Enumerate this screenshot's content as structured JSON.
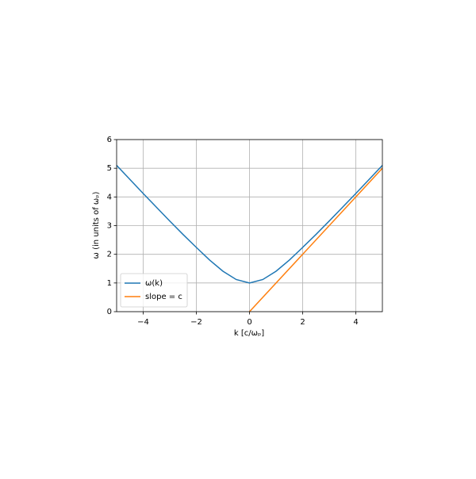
{
  "chart_data": {
    "type": "line",
    "xlabel": "k [c/ωₚ]",
    "ylabel": "ω (in units of ωₚ)",
    "xlim": [
      -5,
      5
    ],
    "ylim": [
      0,
      6
    ],
    "xticks": [
      {
        "value": -4,
        "label": "−4"
      },
      {
        "value": -2,
        "label": "−2"
      },
      0,
      2,
      4
    ],
    "yticks": [
      0,
      1,
      2,
      3,
      4,
      5,
      6
    ],
    "grid": true,
    "legend": "lower left",
    "series": [
      {
        "name": "ω(k)",
        "color": "#1f77b4",
        "x": [
          -5,
          -4.5,
          -4,
          -3.5,
          -3,
          -2.5,
          -2,
          -1.5,
          -1,
          -0.5,
          0,
          0.5,
          1,
          1.5,
          2,
          2.5,
          3,
          3.5,
          4,
          4.5,
          5
        ],
        "values": [
          5.1,
          4.61,
          4.12,
          3.64,
          3.16,
          2.69,
          2.24,
          1.8,
          1.41,
          1.12,
          1.0,
          1.12,
          1.41,
          1.8,
          2.24,
          2.69,
          3.16,
          3.64,
          4.12,
          4.61,
          5.1
        ]
      },
      {
        "name": "slope = c",
        "color": "#ff7f0e",
        "x": [
          0,
          5
        ],
        "values": [
          0,
          5
        ]
      }
    ]
  }
}
